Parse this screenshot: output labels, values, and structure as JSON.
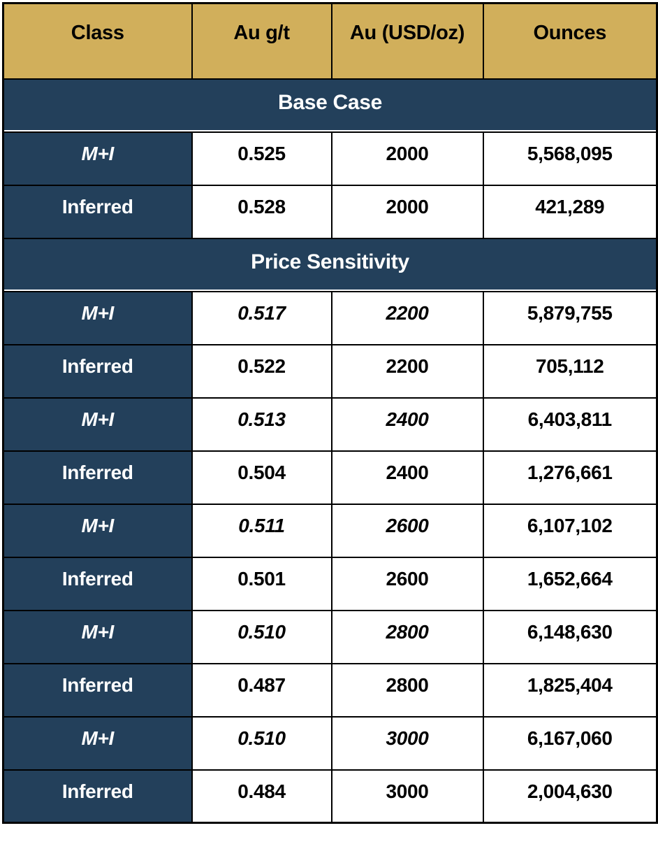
{
  "colors": {
    "header_bg": "#D1AF5B",
    "header_text": "#000000",
    "section_bg": "#23405B",
    "section_text": "#FFFFFF",
    "value_text": "#000000",
    "border": "#000000",
    "row_bg": "#FFFFFF"
  },
  "chart_data": {
    "type": "table",
    "columns": [
      "Class",
      "Au g/t",
      "Au (USD/oz)",
      "Ounces"
    ],
    "sections": [
      {
        "title": "Base Case",
        "rows": [
          {
            "class_label": "M+I",
            "au_gt": "0.525",
            "au_usd_oz": "2000",
            "ounces": "5,568,095",
            "values_italic": false
          },
          {
            "class_label": "Inferred",
            "au_gt": "0.528",
            "au_usd_oz": "2000",
            "ounces": "421,289",
            "values_italic": false
          }
        ]
      },
      {
        "title": "Price Sensitivity",
        "rows": [
          {
            "class_label": "M+I",
            "au_gt": "0.517",
            "au_usd_oz": "2200",
            "ounces": "5,879,755",
            "values_italic": true
          },
          {
            "class_label": "Inferred",
            "au_gt": "0.522",
            "au_usd_oz": "2200",
            "ounces": "705,112",
            "values_italic": false
          },
          {
            "class_label": "M+I",
            "au_gt": "0.513",
            "au_usd_oz": "2400",
            "ounces": "6,403,811",
            "values_italic": true
          },
          {
            "class_label": "Inferred",
            "au_gt": "0.504",
            "au_usd_oz": "2400",
            "ounces": "1,276,661",
            "values_italic": false
          },
          {
            "class_label": "M+I",
            "au_gt": "0.511",
            "au_usd_oz": "2600",
            "ounces": "6,107,102",
            "values_italic": true
          },
          {
            "class_label": "Inferred",
            "au_gt": "0.501",
            "au_usd_oz": "2600",
            "ounces": "1,652,664",
            "values_italic": false
          },
          {
            "class_label": "M+I",
            "au_gt": "0.510",
            "au_usd_oz": "2800",
            "ounces": "6,148,630",
            "values_italic": true
          },
          {
            "class_label": "Inferred",
            "au_gt": "0.487",
            "au_usd_oz": "2800",
            "ounces": "1,825,404",
            "values_italic": false
          },
          {
            "class_label": "M+I",
            "au_gt": "0.510",
            "au_usd_oz": "3000",
            "ounces": "6,167,060",
            "values_italic": true
          },
          {
            "class_label": "Inferred",
            "au_gt": "0.484",
            "au_usd_oz": "3000",
            "ounces": "2,004,630",
            "values_italic": false
          }
        ]
      }
    ]
  }
}
